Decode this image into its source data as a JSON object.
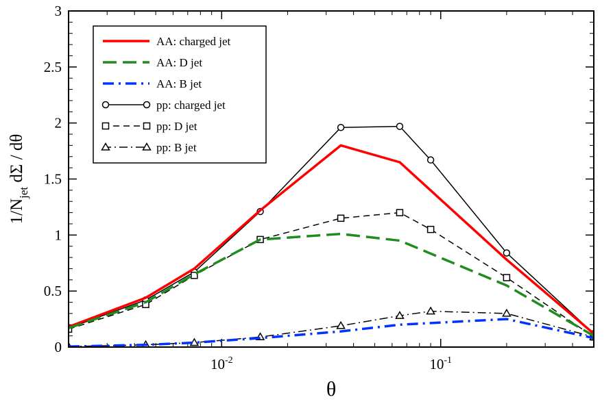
{
  "chart_data": {
    "type": "line",
    "xlabel": "θ",
    "ylabel": "1/N_jet dΣ / dθ",
    "ylabel_parts": {
      "main": "1/N",
      "sub": "jet",
      "rest": " dΣ / dθ"
    },
    "xscale": "log",
    "xlim": [
      0.002,
      0.5
    ],
    "ylim": [
      0,
      3
    ],
    "x_ticks": [
      {
        "value": 0.01,
        "base": "10",
        "exp": "-2"
      },
      {
        "value": 0.1,
        "base": "10",
        "exp": "-1"
      }
    ],
    "y_ticks": [
      0,
      0.5,
      1,
      1.5,
      2,
      2.5,
      3
    ],
    "y_tick_labels": [
      "0",
      "0.5",
      "1",
      "1.5",
      "2",
      "2.5",
      "3"
    ],
    "grid": false,
    "legend_position": "top-left",
    "series": [
      {
        "name": "AA:  charged jet",
        "color": "#ff0000",
        "style": "solid",
        "width": 3.5,
        "marker": "none",
        "x": [
          0.002,
          0.0045,
          0.0075,
          0.015,
          0.035,
          0.065,
          0.2,
          0.5
        ],
        "y": [
          0.18,
          0.44,
          0.7,
          1.22,
          1.8,
          1.65,
          0.78,
          0.12
        ]
      },
      {
        "name": "AA:  D jet",
        "color": "#1f8c1f",
        "style": "dash",
        "width": 3.5,
        "marker": "none",
        "x": [
          0.002,
          0.0045,
          0.0075,
          0.015,
          0.035,
          0.065,
          0.2,
          0.5
        ],
        "y": [
          0.17,
          0.4,
          0.65,
          0.96,
          1.01,
          0.95,
          0.55,
          0.1
        ]
      },
      {
        "name": "AA:  B jet",
        "color": "#0033ff",
        "style": "dashdot",
        "width": 3.5,
        "marker": "none",
        "x": [
          0.002,
          0.0045,
          0.0075,
          0.015,
          0.035,
          0.065,
          0.2,
          0.5
        ],
        "y": [
          0.005,
          0.02,
          0.04,
          0.08,
          0.14,
          0.2,
          0.25,
          0.08
        ]
      },
      {
        "name": "pp:  charged jet",
        "color": "#000000",
        "style": "solid",
        "width": 1.5,
        "marker": "circle",
        "x": [
          0.002,
          0.0045,
          0.0075,
          0.015,
          0.035,
          0.065,
          0.09,
          0.2,
          0.5
        ],
        "y": [
          0.17,
          0.42,
          0.67,
          1.21,
          1.96,
          1.97,
          1.67,
          0.84,
          0.12
        ]
      },
      {
        "name": "pp:  D jet",
        "color": "#000000",
        "style": "dash",
        "width": 1.5,
        "marker": "square",
        "x": [
          0.002,
          0.0045,
          0.0075,
          0.015,
          0.035,
          0.065,
          0.09,
          0.2,
          0.5
        ],
        "y": [
          0.16,
          0.38,
          0.64,
          0.96,
          1.15,
          1.2,
          1.05,
          0.62,
          0.09
        ]
      },
      {
        "name": "pp:  B jet",
        "color": "#000000",
        "style": "dashdot",
        "width": 1.5,
        "marker": "triangle",
        "x": [
          0.002,
          0.0045,
          0.0075,
          0.015,
          0.035,
          0.065,
          0.09,
          0.2,
          0.5
        ],
        "y": [
          0.005,
          0.02,
          0.04,
          0.09,
          0.19,
          0.28,
          0.32,
          0.3,
          0.09
        ]
      }
    ]
  }
}
